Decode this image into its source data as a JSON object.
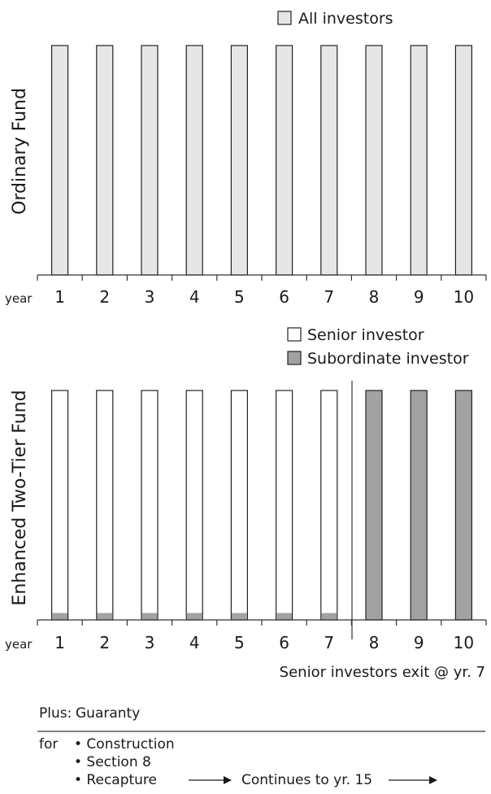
{
  "colors": {
    "all_investors": "#e6e6e6",
    "senior": "#ffffff",
    "subordinate": "#a2a2a2",
    "stroke": "#222222"
  },
  "chart_data": [
    {
      "type": "bar",
      "ylabel": "Ordinary Fund",
      "xlabel": "year",
      "categories": [
        "1",
        "2",
        "3",
        "4",
        "5",
        "6",
        "7",
        "8",
        "9",
        "10"
      ],
      "legend": [
        "All investors"
      ],
      "series": [
        {
          "name": "All investors",
          "values": [
            1,
            1,
            1,
            1,
            1,
            1,
            1,
            1,
            1,
            1
          ]
        }
      ],
      "ylim": [
        0,
        1
      ]
    },
    {
      "type": "bar",
      "stacked": true,
      "ylabel": "Enhanced Two-Tier Fund",
      "xlabel": "year",
      "categories": [
        "1",
        "2",
        "3",
        "4",
        "5",
        "6",
        "7",
        "8",
        "9",
        "10"
      ],
      "legend": [
        "Senior investor",
        "Subordinate investor"
      ],
      "series": [
        {
          "name": "Subordinate investor",
          "values": [
            0.03,
            0.03,
            0.03,
            0.03,
            0.03,
            0.03,
            0.03,
            1,
            1,
            1
          ]
        },
        {
          "name": "Senior investor",
          "values": [
            0.97,
            0.97,
            0.97,
            0.97,
            0.97,
            0.97,
            0.97,
            0,
            0,
            0
          ]
        }
      ],
      "ylim": [
        0,
        1
      ],
      "annotation": "Senior investors exit @ yr. 7",
      "divider_after_category": "7"
    }
  ],
  "footer": {
    "plus_label": "Plus:",
    "plus_value": "Guaranty",
    "for_label": "for",
    "items": [
      "• Construction",
      "• Section 8",
      "• Recapture"
    ],
    "continues_text": "Continues to yr. 15"
  }
}
